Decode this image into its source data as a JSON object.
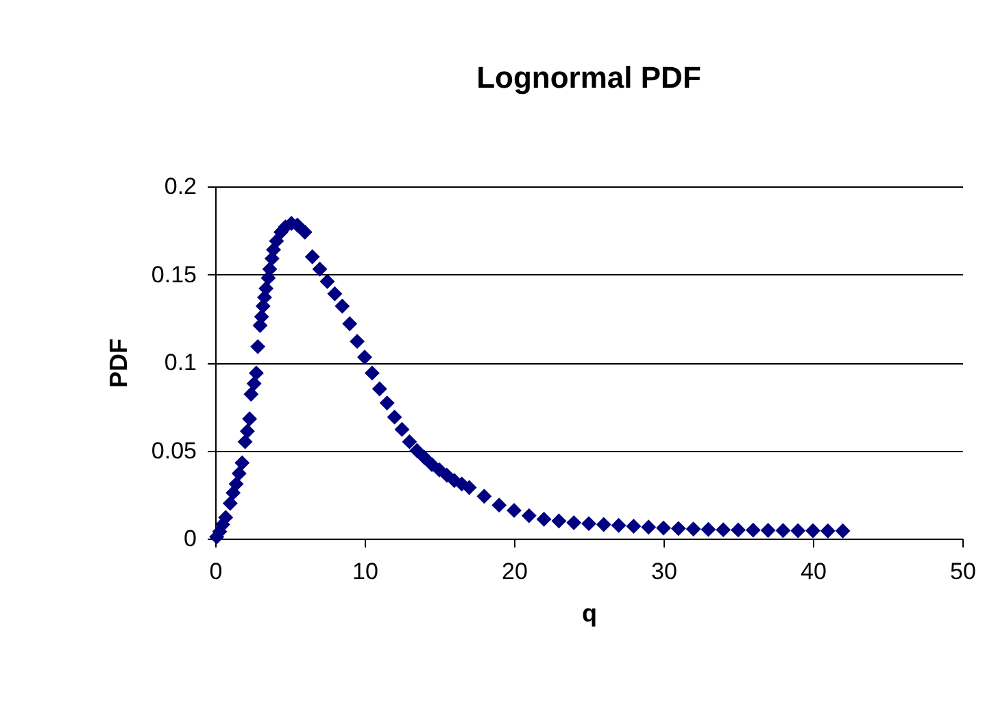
{
  "chart_data": {
    "type": "scatter",
    "title": "Lognormal PDF",
    "xlabel": "q",
    "ylabel": "PDF",
    "x": [
      0.1,
      0.3,
      0.5,
      0.7,
      1.0,
      1.2,
      1.4,
      1.6,
      1.8,
      2.0,
      2.15,
      2.3,
      2.4,
      2.6,
      2.75,
      2.85,
      3.0,
      3.1,
      3.2,
      3.3,
      3.4,
      3.55,
      3.65,
      3.8,
      3.9,
      4.1,
      4.4,
      4.7,
      5.1,
      5.5,
      6.0,
      6.5,
      7.0,
      7.5,
      8.0,
      8.5,
      9.0,
      9.5,
      10.0,
      10.5,
      11.0,
      11.5,
      12.0,
      12.5,
      13.0,
      13.5,
      14.0,
      14.5,
      15.0,
      15.5,
      16.0,
      16.5,
      17.0,
      18.0,
      19.0,
      20.0,
      21.0,
      22.0,
      23.0,
      24.0,
      25.0,
      26.0,
      27.0,
      28.0,
      29.0,
      30.0,
      31.0,
      32.0,
      33.0,
      34.0,
      35.0,
      36.0,
      37.0,
      38.0,
      39.0,
      40.0,
      41.0,
      42.0
    ],
    "series": [
      {
        "color": "#000080",
        "values": [
          0.001,
          0.004,
          0.008,
          0.012,
          0.02,
          0.026,
          0.031,
          0.037,
          0.043,
          0.055,
          0.061,
          0.068,
          0.082,
          0.088,
          0.094,
          0.109,
          0.121,
          0.126,
          0.132,
          0.137,
          0.142,
          0.148,
          0.153,
          0.159,
          0.164,
          0.169,
          0.174,
          0.177,
          0.179,
          0.178,
          0.174,
          0.16,
          0.153,
          0.146,
          0.139,
          0.132,
          0.122,
          0.112,
          0.103,
          0.094,
          0.085,
          0.077,
          0.069,
          0.062,
          0.055,
          0.05,
          0.046,
          0.042,
          0.039,
          0.036,
          0.033,
          0.031,
          0.029,
          0.024,
          0.019,
          0.016,
          0.013,
          0.011,
          0.01,
          0.009,
          0.0085,
          0.008,
          0.0075,
          0.007,
          0.0065,
          0.006,
          0.0057,
          0.0054,
          0.0052,
          0.005,
          0.0049,
          0.0048,
          0.0047,
          0.0046,
          0.0045,
          0.0045,
          0.0044,
          0.0044
        ]
      }
    ],
    "marker": "diamond",
    "xlim": [
      0,
      50
    ],
    "xticks": [
      0,
      10,
      20,
      30,
      40,
      50
    ],
    "ylim": [
      0,
      0.2
    ],
    "yticks": [
      0,
      0.05,
      0.1,
      0.15,
      0.2
    ],
    "grid": "y",
    "legend": false
  }
}
